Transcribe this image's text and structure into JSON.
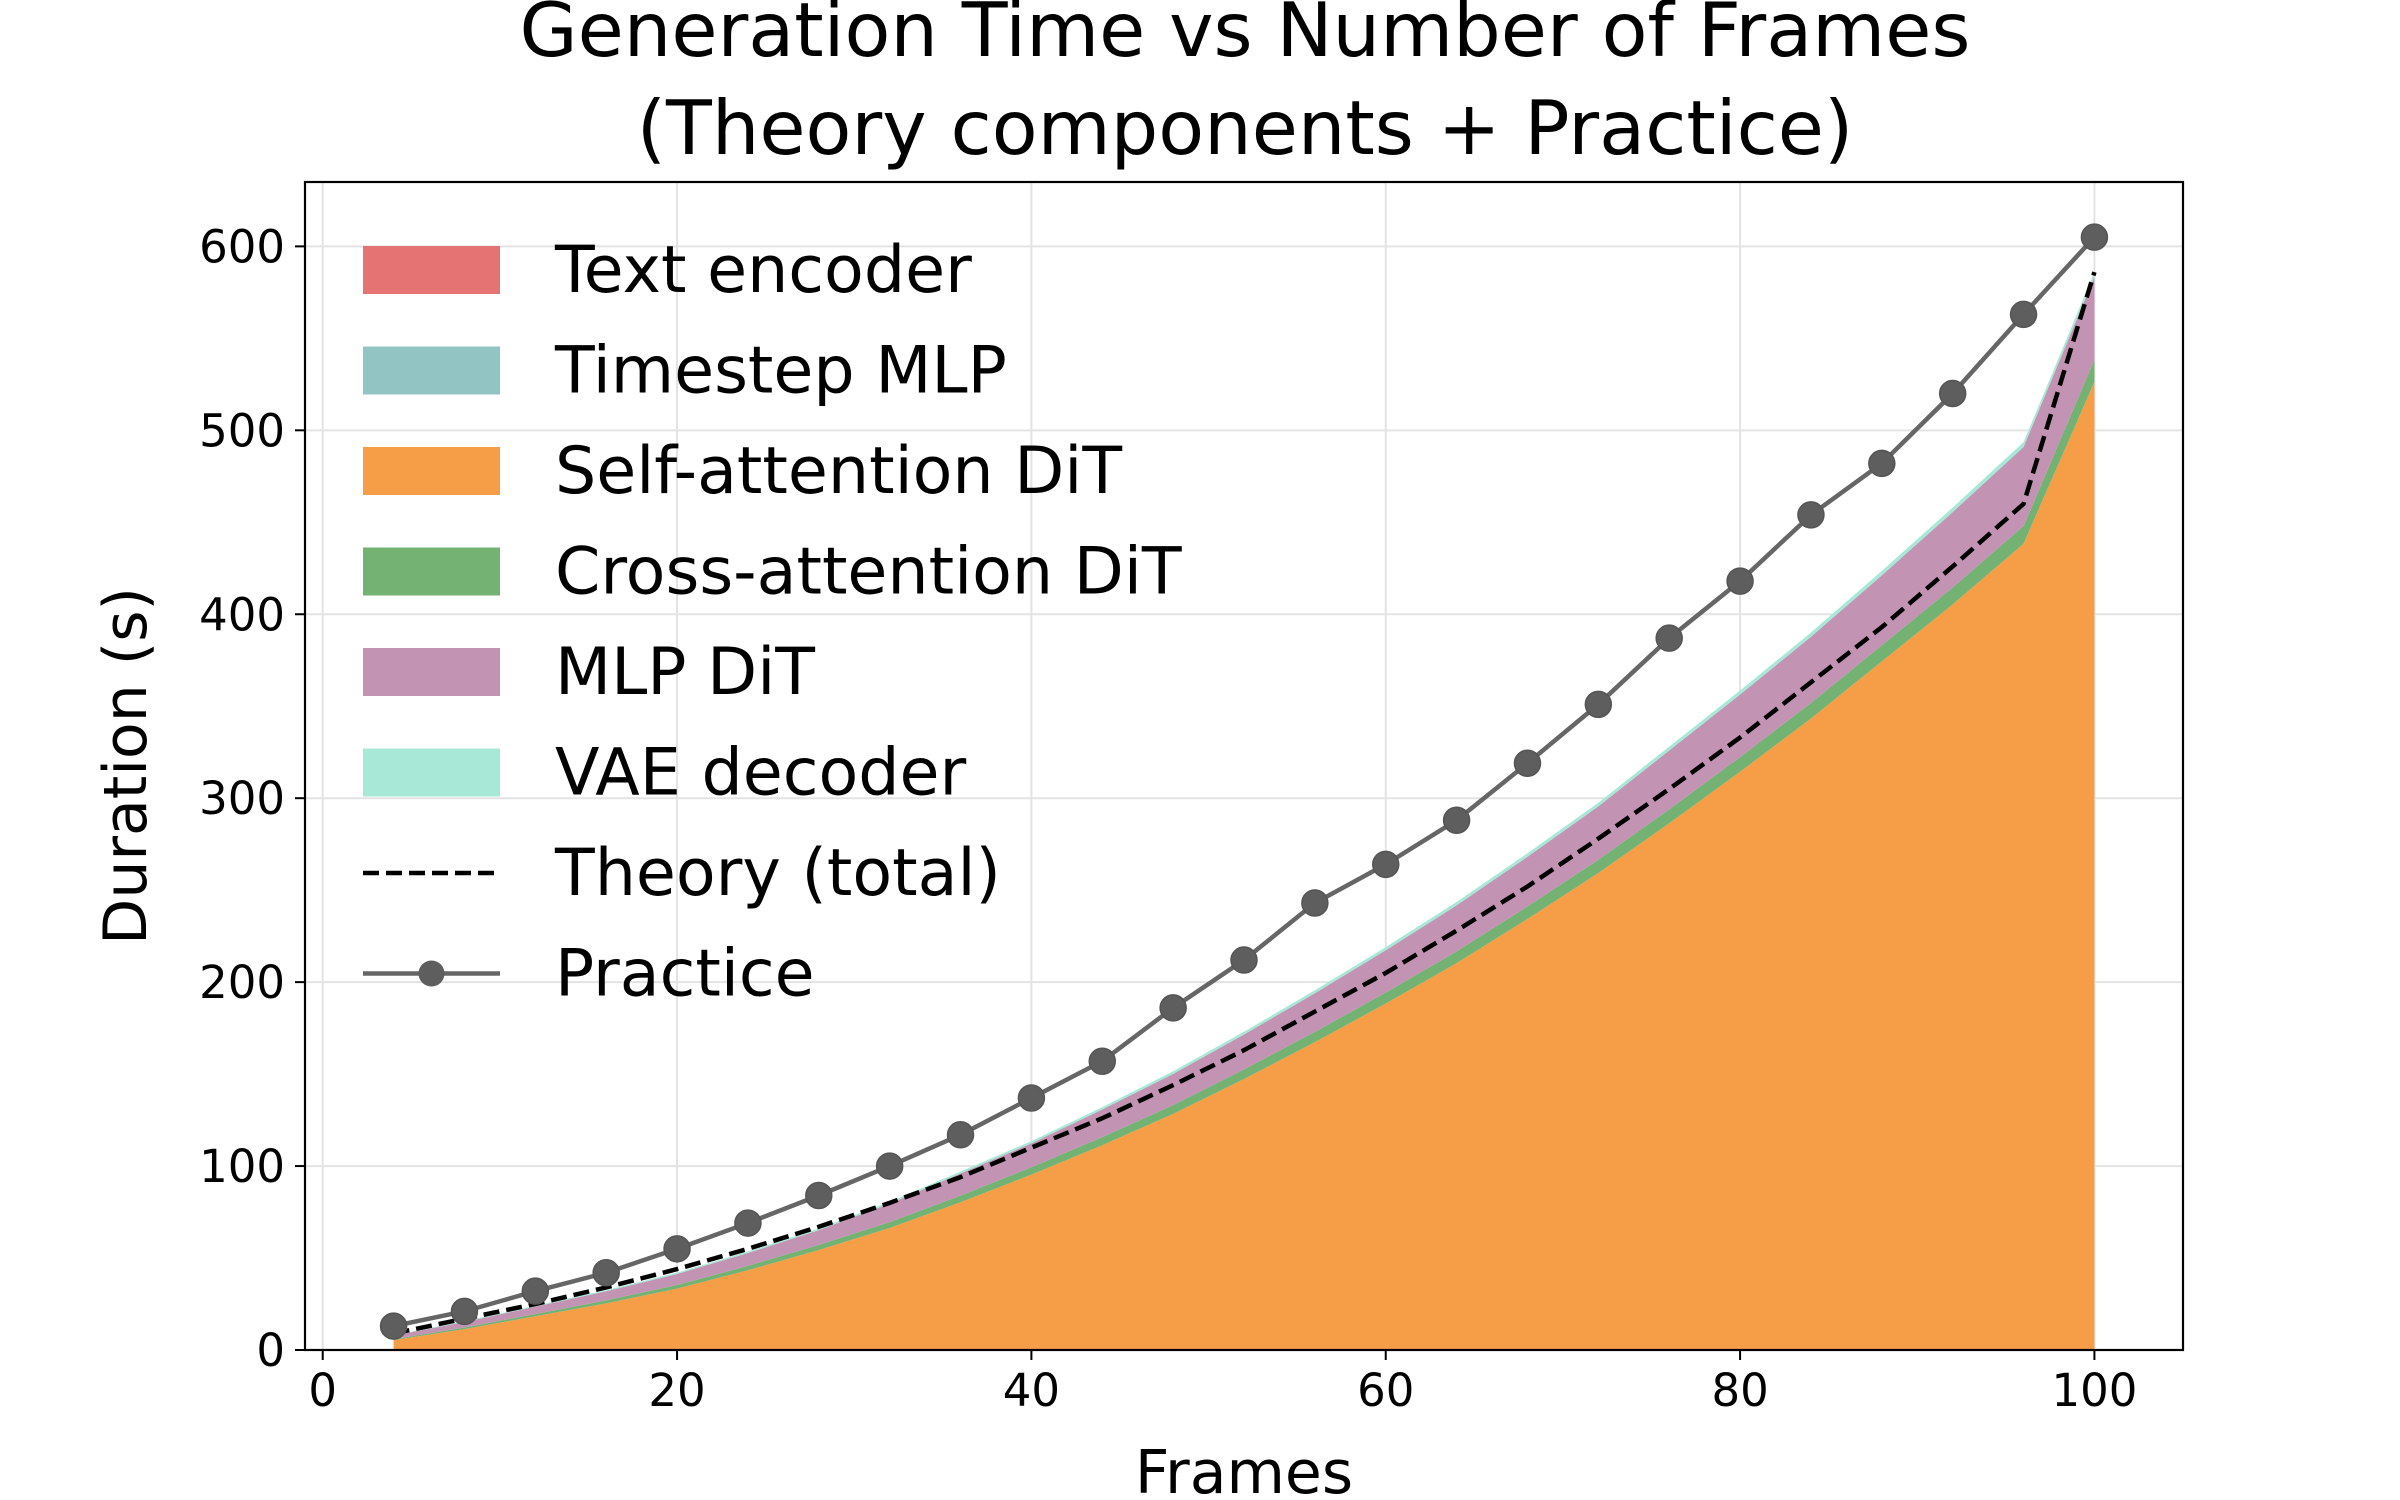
{
  "chart_data": {
    "type": "area",
    "title_lines": [
      "Generation Time vs Number of Frames",
      "(Theory components + Practice)"
    ],
    "xlabel": "Frames",
    "ylabel": "Duration (s)",
    "xlim": [
      -1,
      105
    ],
    "ylim": [
      0,
      635
    ],
    "x_ticks": [
      0,
      20,
      40,
      60,
      80,
      100
    ],
    "y_ticks": [
      0,
      100,
      200,
      300,
      400,
      500,
      600
    ],
    "grid": true,
    "legend_position": "top-left",
    "x": [
      4,
      8,
      12,
      16,
      20,
      24,
      28,
      32,
      36,
      40,
      44,
      48,
      52,
      56,
      60,
      64,
      68,
      72,
      76,
      80,
      84,
      88,
      92,
      96,
      100
    ],
    "stack_series": [
      {
        "name": "Text encoder",
        "color": "#e57373",
        "values": [
          0.3,
          0.3,
          0.3,
          0.3,
          0.3,
          0.3,
          0.3,
          0.3,
          0.3,
          0.3,
          0.3,
          0.3,
          0.3,
          0.3,
          0.3,
          0.3,
          0.3,
          0.3,
          0.3,
          0.3,
          0.3,
          0.3,
          0.3,
          0.3,
          0.3
        ]
      },
      {
        "name": "Timestep MLP",
        "color": "#93c4c4",
        "values": [
          0.05,
          0.05,
          0.05,
          0.05,
          0.05,
          0.05,
          0.05,
          0.05,
          0.05,
          0.05,
          0.05,
          0.05,
          0.05,
          0.05,
          0.05,
          0.05,
          0.05,
          0.05,
          0.05,
          0.05,
          0.05,
          0.05,
          0.05,
          0.05,
          0.05
        ]
      },
      {
        "name": "Self-attention DiT",
        "color": "#f59d47",
        "values": [
          5,
          11,
          18,
          25,
          33,
          43,
          54,
          66,
          80,
          95,
          111,
          128,
          147,
          167,
          188,
          210,
          234,
          259,
          286,
          314,
          343,
          374,
          405,
          438,
          526
        ]
      },
      {
        "name": "Cross-attention DiT",
        "color": "#73b273",
        "values": [
          0.5,
          0.9,
          1.2,
          1.6,
          2.0,
          2.4,
          2.8,
          3.2,
          3.6,
          4.0,
          4.4,
          4.8,
          5.2,
          5.6,
          6.0,
          6.4,
          6.8,
          7.2,
          7.6,
          8.0,
          8.4,
          8.8,
          9.2,
          9.6,
          12
        ]
      },
      {
        "name": "MLP DiT",
        "color": "#c293b2",
        "values": [
          2,
          3,
          4,
          5,
          6,
          7,
          8,
          10,
          12,
          13,
          15,
          17,
          19,
          21,
          23,
          25,
          27,
          29,
          32,
          34,
          36,
          38,
          41,
          43,
          45
        ]
      },
      {
        "name": "VAE decoder",
        "color": "#a8e8d6",
        "values": [
          0.3,
          0.4,
          0.5,
          0.6,
          0.7,
          0.8,
          0.9,
          1.0,
          1.1,
          1.2,
          1.3,
          1.4,
          1.5,
          1.6,
          1.7,
          1.8,
          1.9,
          2.0,
          2.1,
          2.2,
          2.3,
          2.4,
          2.5,
          2.6,
          2.7
        ]
      }
    ],
    "theory_total": {
      "name": "Theory (total)",
      "color": "#000000",
      "style": "dashed",
      "values": [
        9,
        17,
        25,
        34,
        44,
        55,
        67,
        80,
        94,
        110,
        126,
        144,
        163,
        184,
        205,
        228,
        252,
        278,
        305,
        333,
        363,
        393,
        426,
        460,
        586
      ]
    },
    "practice": {
      "name": "Practice",
      "color": "#666666",
      "marker": "circle",
      "values": [
        13,
        21,
        32,
        42,
        55,
        69,
        84,
        100,
        117,
        137,
        157,
        186,
        212,
        243,
        264,
        288,
        319,
        351,
        387,
        418,
        454,
        482,
        520,
        563,
        605
      ]
    }
  }
}
